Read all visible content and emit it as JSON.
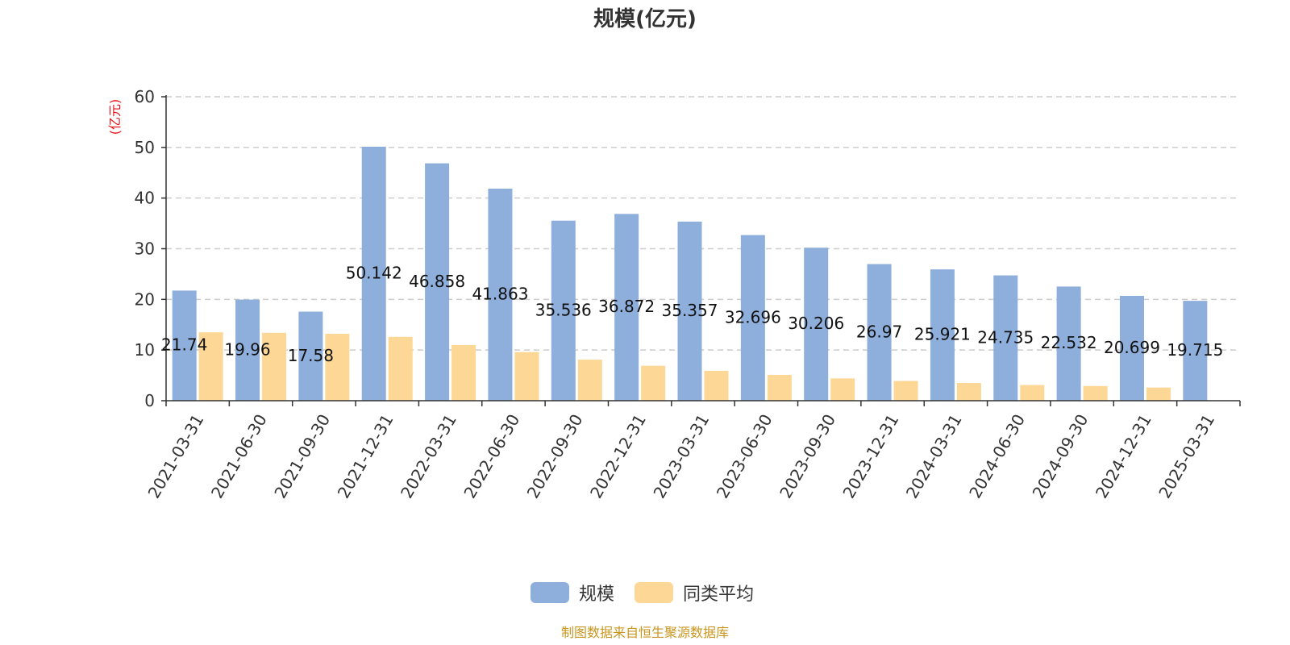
{
  "chart_data": {
    "type": "bar",
    "title": "规模(亿元)",
    "ylabel": "(亿元)",
    "xlabel": "",
    "ylim": [
      0,
      60
    ],
    "yticks": [
      0,
      10,
      20,
      30,
      40,
      50,
      60
    ],
    "grid": true,
    "legend_position": "bottom-center",
    "categories": [
      "2021-03-31",
      "2021-06-30",
      "2021-09-30",
      "2021-12-31",
      "2022-03-31",
      "2022-06-30",
      "2022-09-30",
      "2022-12-31",
      "2023-03-31",
      "2023-06-30",
      "2023-09-30",
      "2023-12-31",
      "2024-03-31",
      "2024-06-30",
      "2024-09-30",
      "2024-12-31",
      "2025-03-31"
    ],
    "series": [
      {
        "name": "规模",
        "color": "#8eaedb",
        "values": [
          21.74,
          19.96,
          17.58,
          50.142,
          46.858,
          41.863,
          35.536,
          36.872,
          35.357,
          32.696,
          30.206,
          26.97,
          25.921,
          24.735,
          22.532,
          20.699,
          19.715
        ],
        "labels": [
          "21.74",
          "19.96",
          "17.58",
          "50.142",
          "46.858",
          "41.863",
          "35.536",
          "36.872",
          "35.357",
          "32.696",
          "30.206",
          "26.97",
          "25.921",
          "24.735",
          "22.532",
          "20.699",
          "19.715"
        ]
      },
      {
        "name": "同类平均",
        "color": "#fdd796",
        "values": [
          13.5,
          13.4,
          13.2,
          12.6,
          11.0,
          9.6,
          8.1,
          6.9,
          5.9,
          5.1,
          4.4,
          3.9,
          3.5,
          3.1,
          2.9,
          2.6,
          null
        ]
      }
    ],
    "source": "制图数据来自恒生聚源数据库"
  },
  "colors": {
    "unit_label": "#e8141b",
    "source_text": "#c8961e",
    "axis": "#333333",
    "grid": "#cccccc"
  }
}
